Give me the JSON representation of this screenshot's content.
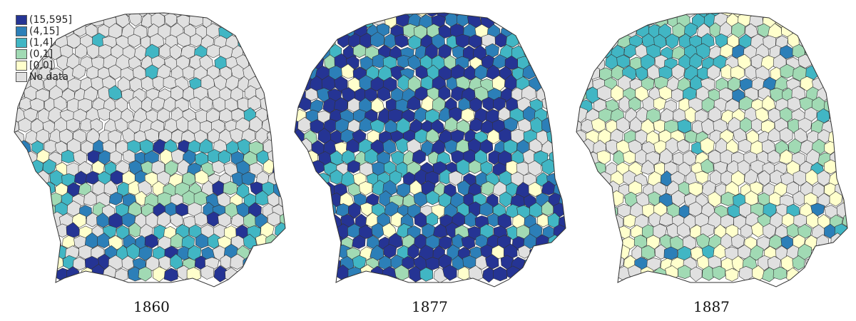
{
  "legend": [
    {
      "label": "(15,595]",
      "color": "#253494"
    },
    {
      "label": "(4,15]",
      "color": "#2c7fb8"
    },
    {
      "label": "(1,4]",
      "color": "#41b6c4"
    },
    {
      "label": "(0,1]",
      "color": "#a1dab4"
    },
    {
      "label": "[0,0]",
      "color": "#ffffcc"
    },
    {
      "label": "No data",
      "color": "#e0e0e0"
    }
  ],
  "maps": [
    {
      "year": "1860"
    },
    {
      "year": "1877"
    },
    {
      "year": "1887"
    }
  ],
  "border_color": "#333333"
}
